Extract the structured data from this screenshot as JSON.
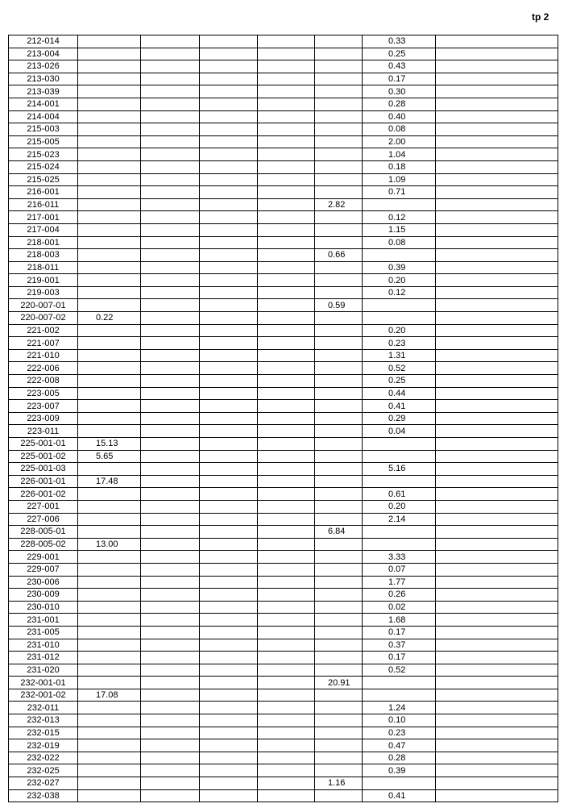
{
  "page_mark": "tp 2",
  "rows": [
    [
      "212-014",
      "",
      "",
      "",
      "",
      "",
      "0.33",
      ""
    ],
    [
      "213-004",
      "",
      "",
      "",
      "",
      "",
      "0.25",
      ""
    ],
    [
      "213-026",
      "",
      "",
      "",
      "",
      "",
      "0.43",
      ""
    ],
    [
      "213-030",
      "",
      "",
      "",
      "",
      "",
      "0.17",
      ""
    ],
    [
      "213-039",
      "",
      "",
      "",
      "",
      "",
      "0.30",
      ""
    ],
    [
      "214-001",
      "",
      "",
      "",
      "",
      "",
      "0.28",
      ""
    ],
    [
      "214-004",
      "",
      "",
      "",
      "",
      "",
      "0.40",
      ""
    ],
    [
      "215-003",
      "",
      "",
      "",
      "",
      "",
      "0.08",
      ""
    ],
    [
      "215-005",
      "",
      "",
      "",
      "",
      "",
      "2.00",
      ""
    ],
    [
      "215-023",
      "",
      "",
      "",
      "",
      "",
      "1.04",
      ""
    ],
    [
      "215-024",
      "",
      "",
      "",
      "",
      "",
      "0.18",
      ""
    ],
    [
      "215-025",
      "",
      "",
      "",
      "",
      "",
      "1.09",
      ""
    ],
    [
      "216-001",
      "",
      "",
      "",
      "",
      "",
      "0.71",
      ""
    ],
    [
      "216-011",
      "",
      "",
      "",
      "",
      "2.82",
      "",
      ""
    ],
    [
      "217-001",
      "",
      "",
      "",
      "",
      "",
      "0.12",
      ""
    ],
    [
      "217-004",
      "",
      "",
      "",
      "",
      "",
      "1.15",
      ""
    ],
    [
      "218-001",
      "",
      "",
      "",
      "",
      "",
      "0.08",
      ""
    ],
    [
      "218-003",
      "",
      "",
      "",
      "",
      "0.66",
      "",
      ""
    ],
    [
      "218-011",
      "",
      "",
      "",
      "",
      "",
      "0.39",
      ""
    ],
    [
      "219-001",
      "",
      "",
      "",
      "",
      "",
      "0.20",
      ""
    ],
    [
      "219-003",
      "",
      "",
      "",
      "",
      "",
      "0.12",
      ""
    ],
    [
      "220-007-01",
      "",
      "",
      "",
      "",
      "0.59",
      "",
      ""
    ],
    [
      "220-007-02",
      "0.22",
      "",
      "",
      "",
      "",
      "",
      ""
    ],
    [
      "221-002",
      "",
      "",
      "",
      "",
      "",
      "0.20",
      ""
    ],
    [
      "221-007",
      "",
      "",
      "",
      "",
      "",
      "0.23",
      ""
    ],
    [
      "221-010",
      "",
      "",
      "",
      "",
      "",
      "1.31",
      ""
    ],
    [
      "222-006",
      "",
      "",
      "",
      "",
      "",
      "0.52",
      ""
    ],
    [
      "222-008",
      "",
      "",
      "",
      "",
      "",
      "0.25",
      ""
    ],
    [
      "223-005",
      "",
      "",
      "",
      "",
      "",
      "0.44",
      ""
    ],
    [
      "223-007",
      "",
      "",
      "",
      "",
      "",
      "0.41",
      ""
    ],
    [
      "223-009",
      "",
      "",
      "",
      "",
      "",
      "0.29",
      ""
    ],
    [
      "223-011",
      "",
      "",
      "",
      "",
      "",
      "0.04",
      ""
    ],
    [
      "225-001-01",
      "15.13",
      "",
      "",
      "",
      "",
      "",
      ""
    ],
    [
      "225-001-02",
      "5.65",
      "",
      "",
      "",
      "",
      "",
      ""
    ],
    [
      "225-001-03",
      "",
      "",
      "",
      "",
      "",
      "5.16",
      ""
    ],
    [
      "226-001-01",
      "17.48",
      "",
      "",
      "",
      "",
      "",
      ""
    ],
    [
      "226-001-02",
      "",
      "",
      "",
      "",
      "",
      "0.61",
      ""
    ],
    [
      "227-001",
      "",
      "",
      "",
      "",
      "",
      "0.20",
      ""
    ],
    [
      "227-006",
      "",
      "",
      "",
      "",
      "",
      "2.14",
      ""
    ],
    [
      "228-005-01",
      "",
      "",
      "",
      "",
      "6.84",
      "",
      ""
    ],
    [
      "228-005-02",
      "13.00",
      "",
      "",
      "",
      "",
      "",
      ""
    ],
    [
      "229-001",
      "",
      "",
      "",
      "",
      "",
      "3.33",
      ""
    ],
    [
      "229-007",
      "",
      "",
      "",
      "",
      "",
      "0.07",
      ""
    ],
    [
      "230-006",
      "",
      "",
      "",
      "",
      "",
      "1.77",
      ""
    ],
    [
      "230-009",
      "",
      "",
      "",
      "",
      "",
      "0.26",
      ""
    ],
    [
      "230-010",
      "",
      "",
      "",
      "",
      "",
      "0.02",
      ""
    ],
    [
      "231-001",
      "",
      "",
      "",
      "",
      "",
      "1.68",
      ""
    ],
    [
      "231-005",
      "",
      "",
      "",
      "",
      "",
      "0.17",
      ""
    ],
    [
      "231-010",
      "",
      "",
      "",
      "",
      "",
      "0.37",
      ""
    ],
    [
      "231-012",
      "",
      "",
      "",
      "",
      "",
      "0.17",
      ""
    ],
    [
      "231-020",
      "",
      "",
      "",
      "",
      "",
      "0.52",
      ""
    ],
    [
      "232-001-01",
      "",
      "",
      "",
      "",
      "20.91",
      "",
      ""
    ],
    [
      "232-001-02",
      "17.08",
      "",
      "",
      "",
      "",
      "",
      ""
    ],
    [
      "232-011",
      "",
      "",
      "",
      "",
      "",
      "1.24",
      ""
    ],
    [
      "232-013",
      "",
      "",
      "",
      "",
      "",
      "0.10",
      ""
    ],
    [
      "232-015",
      "",
      "",
      "",
      "",
      "",
      "0.23",
      ""
    ],
    [
      "232-019",
      "",
      "",
      "",
      "",
      "",
      "0.47",
      ""
    ],
    [
      "232-022",
      "",
      "",
      "",
      "",
      "",
      "0.28",
      ""
    ],
    [
      "232-025",
      "",
      "",
      "",
      "",
      "",
      "0.39",
      ""
    ],
    [
      "232-027",
      "",
      "",
      "",
      "",
      "1.16",
      "",
      ""
    ],
    [
      "232-038",
      "",
      "",
      "",
      "",
      "",
      "0.41",
      ""
    ]
  ]
}
